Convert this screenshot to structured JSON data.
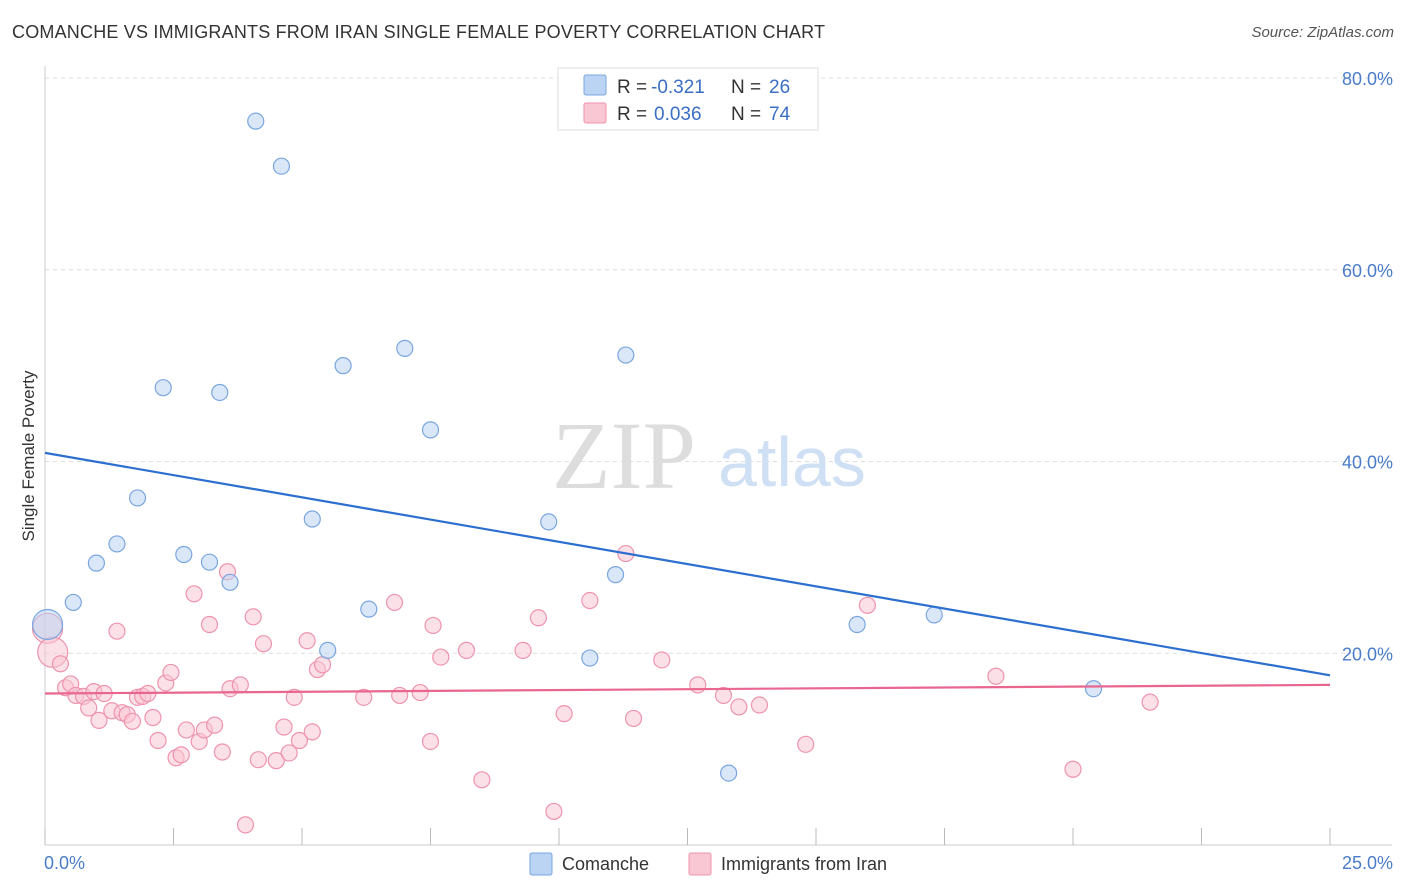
{
  "header": {
    "title": "COMANCHE VS IMMIGRANTS FROM IRAN SINGLE FEMALE POVERTY CORRELATION CHART",
    "source": "Source: ZipAtlas.com"
  },
  "watermark": {
    "zip": "ZIP",
    "atlas": "atlas"
  },
  "legend_top": {
    "rows": [
      {
        "r_label": "R =",
        "r_value": "-0.321",
        "n_label": "N =",
        "n_value": "26"
      },
      {
        "r_label": "R =",
        "r_value": "0.036",
        "n_label": "N =",
        "n_value": "74"
      }
    ]
  },
  "legend_bottom": {
    "items": [
      {
        "label": "Comanche"
      },
      {
        "label": "Immigrants from Iran"
      }
    ]
  },
  "colors": {
    "comanche_fill": "#bcd4f3",
    "comanche_stroke": "#7aa6e0",
    "comanche_line": "#2c6fcf",
    "iran_fill": "#f9c6d4",
    "iran_stroke": "#ee93ae",
    "iran_line": "#e9668f",
    "tick_text": "#4a7cc9",
    "grid": "#dddddd"
  },
  "chart_data": {
    "type": "scatter",
    "title": "COMANCHE VS IMMIGRANTS FROM IRAN SINGLE FEMALE POVERTY CORRELATION CHART",
    "xlabel": "",
    "ylabel": "Single Female Poverty",
    "xlim": [
      0,
      25
    ],
    "ylim": [
      0,
      80
    ],
    "x_tick_labels": [
      "0.0%",
      "25.0%"
    ],
    "y_ticks": [
      20,
      40,
      60,
      80
    ],
    "y_tick_labels": [
      "20.0%",
      "40.0%",
      "60.0%",
      "80.0%"
    ],
    "grid": true,
    "legend_position": "top-center",
    "series": [
      {
        "name": "Comanche",
        "r": -0.321,
        "n": 26,
        "trend": {
          "x": [
            0,
            25
          ],
          "y": [
            40.9,
            17.7
          ]
        },
        "points": [
          [
            0.05,
            23.0
          ],
          [
            0.55,
            25.3
          ],
          [
            1.0,
            29.4
          ],
          [
            1.4,
            31.4
          ],
          [
            1.8,
            36.2
          ],
          [
            2.3,
            47.7
          ],
          [
            2.7,
            30.3
          ],
          [
            3.2,
            29.5
          ],
          [
            3.4,
            47.2
          ],
          [
            3.6,
            27.4
          ],
          [
            4.1,
            75.5
          ],
          [
            4.6,
            70.8
          ],
          [
            5.2,
            34.0
          ],
          [
            5.5,
            20.3
          ],
          [
            5.8,
            50.0
          ],
          [
            6.3,
            24.6
          ],
          [
            7.0,
            51.8
          ],
          [
            7.5,
            43.3
          ],
          [
            9.8,
            33.7
          ],
          [
            10.6,
            19.5
          ],
          [
            11.1,
            28.2
          ],
          [
            11.3,
            51.1
          ],
          [
            13.3,
            7.5
          ],
          [
            15.8,
            23.0
          ],
          [
            17.3,
            24.0
          ],
          [
            20.4,
            16.3
          ]
        ]
      },
      {
        "name": "Immigrants from Iran",
        "r": 0.036,
        "n": 74,
        "trend": {
          "x": [
            0,
            25
          ],
          "y": [
            15.8,
            16.7
          ]
        },
        "points": [
          [
            0.05,
            22.6
          ],
          [
            0.15,
            20.1
          ],
          [
            0.3,
            18.9
          ],
          [
            0.4,
            16.4
          ],
          [
            0.5,
            16.8
          ],
          [
            0.6,
            15.6
          ],
          [
            0.75,
            15.5
          ],
          [
            0.85,
            14.3
          ],
          [
            0.95,
            16.0
          ],
          [
            1.05,
            13.0
          ],
          [
            1.15,
            15.8
          ],
          [
            1.3,
            14.0
          ],
          [
            1.4,
            22.3
          ],
          [
            1.5,
            13.8
          ],
          [
            1.6,
            13.6
          ],
          [
            1.7,
            12.9
          ],
          [
            1.8,
            15.4
          ],
          [
            1.9,
            15.5
          ],
          [
            2.0,
            15.8
          ],
          [
            2.1,
            13.3
          ],
          [
            2.2,
            10.9
          ],
          [
            2.35,
            16.9
          ],
          [
            2.45,
            18.0
          ],
          [
            2.55,
            9.1
          ],
          [
            2.65,
            9.4
          ],
          [
            2.75,
            12.0
          ],
          [
            2.9,
            26.2
          ],
          [
            3.0,
            10.8
          ],
          [
            3.1,
            12.0
          ],
          [
            3.2,
            23.0
          ],
          [
            3.3,
            12.5
          ],
          [
            3.45,
            9.7
          ],
          [
            3.55,
            28.5
          ],
          [
            3.6,
            16.3
          ],
          [
            3.8,
            16.7
          ],
          [
            3.9,
            2.1
          ],
          [
            4.05,
            23.8
          ],
          [
            4.15,
            8.9
          ],
          [
            4.25,
            21.0
          ],
          [
            4.5,
            8.8
          ],
          [
            4.65,
            12.3
          ],
          [
            4.75,
            9.6
          ],
          [
            4.85,
            15.4
          ],
          [
            4.95,
            10.9
          ],
          [
            5.1,
            21.3
          ],
          [
            5.2,
            11.8
          ],
          [
            5.3,
            18.3
          ],
          [
            5.4,
            18.8
          ],
          [
            6.2,
            15.4
          ],
          [
            6.8,
            25.3
          ],
          [
            6.9,
            15.6
          ],
          [
            7.3,
            15.9
          ],
          [
            7.5,
            10.8
          ],
          [
            7.55,
            22.9
          ],
          [
            7.7,
            19.6
          ],
          [
            8.2,
            20.3
          ],
          [
            8.5,
            6.8
          ],
          [
            9.3,
            20.3
          ],
          [
            9.6,
            23.7
          ],
          [
            9.9,
            3.5
          ],
          [
            10.1,
            13.7
          ],
          [
            10.6,
            25.5
          ],
          [
            11.3,
            30.4
          ],
          [
            11.45,
            13.2
          ],
          [
            12.0,
            19.3
          ],
          [
            12.7,
            16.7
          ],
          [
            13.2,
            15.6
          ],
          [
            13.5,
            14.4
          ],
          [
            13.9,
            14.6
          ],
          [
            14.8,
            10.5
          ],
          [
            16.0,
            25.0
          ],
          [
            18.5,
            17.6
          ],
          [
            20.0,
            7.9
          ],
          [
            21.5,
            14.9
          ]
        ]
      }
    ]
  }
}
